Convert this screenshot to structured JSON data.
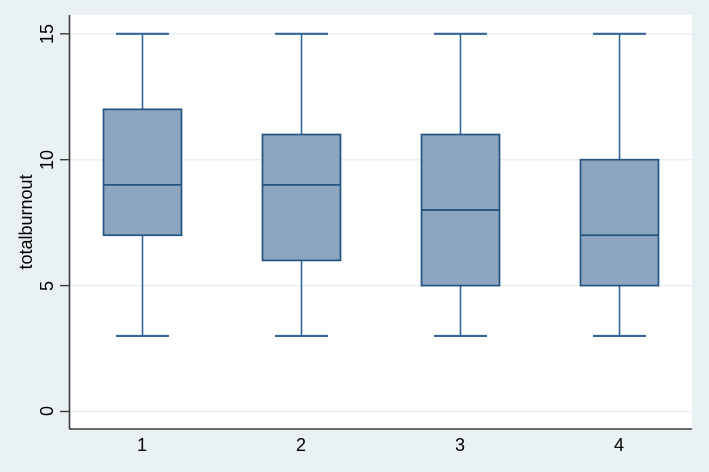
{
  "figure": {
    "background_color": "#e9f1f3",
    "plot_background_color": "#ffffff",
    "grid_color": "#e7eff5",
    "axis_color": "#3a3a3a",
    "text_color": "#000000",
    "box_fill": "#8ea5bf",
    "box_border": "#235580",
    "whisker_color": "#35669a"
  },
  "chart_data": {
    "type": "boxplot",
    "title": "",
    "xlabel": "",
    "ylabel": "totalburnout",
    "categories": [
      "1",
      "2",
      "3",
      "4"
    ],
    "y_ticks": [
      "0",
      "5",
      "10",
      "15"
    ],
    "y_tick_values": [
      0,
      5,
      10,
      15
    ],
    "ylim": [
      0,
      15
    ],
    "grid": true,
    "legend": "none",
    "series": [
      {
        "category": "1",
        "lower_whisker": 3,
        "q1": 7,
        "median": 9,
        "q3": 12,
        "upper_whisker": 15
      },
      {
        "category": "2",
        "lower_whisker": 3,
        "q1": 6,
        "median": 9,
        "q3": 11,
        "upper_whisker": 15
      },
      {
        "category": "3",
        "lower_whisker": 3,
        "q1": 5,
        "median": 8,
        "q3": 11,
        "upper_whisker": 15
      },
      {
        "category": "4",
        "lower_whisker": 3,
        "q1": 5,
        "median": 7,
        "q3": 10,
        "upper_whisker": 15
      }
    ]
  }
}
